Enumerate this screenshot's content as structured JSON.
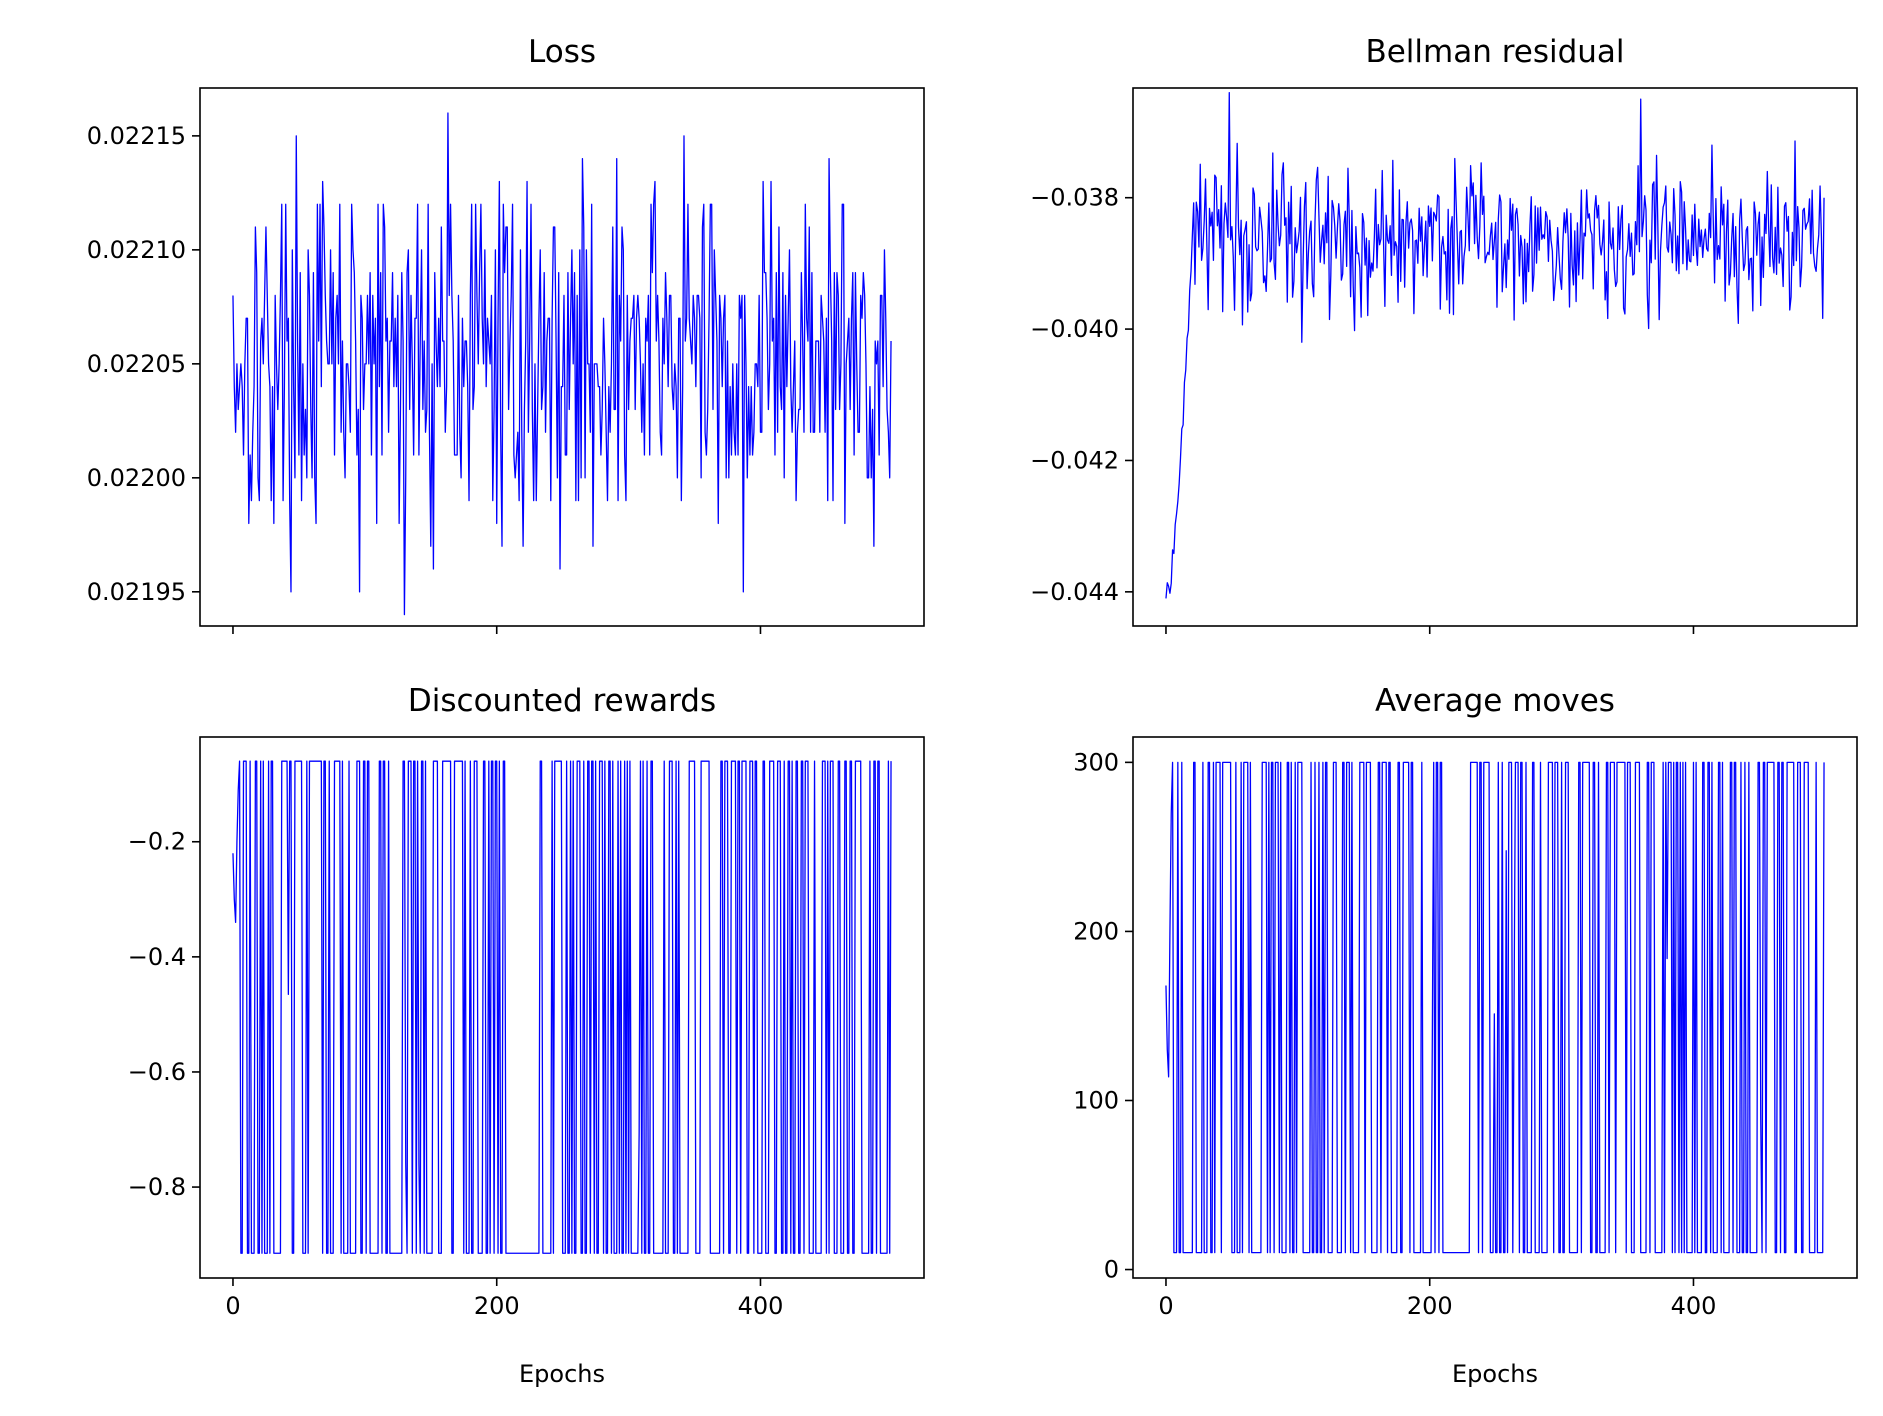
{
  "chart_data": [
    {
      "type": "line",
      "title": "Loss",
      "xlabel": "",
      "ylabel": "",
      "color": "#0000ff",
      "x_range": [
        0,
        499
      ],
      "xlim": [
        -25,
        524
      ],
      "ylim": [
        0.021935,
        0.022171
      ],
      "xticks": [
        0,
        200,
        400
      ],
      "xtick_labels": [
        "",
        "",
        ""
      ],
      "yticks": [
        0.02195,
        0.022,
        0.02205,
        0.0221,
        0.02215
      ],
      "ytick_labels": [
        "0.02195",
        "0.02200",
        "0.02205",
        "0.02210",
        "0.02215"
      ],
      "grid": false,
      "legend": "none",
      "series": [
        {
          "pattern": "noise",
          "base": 0.022053,
          "amplitude": 3.8e-05,
          "min": 0.02194,
          "max": 0.02216,
          "quantum": 1e-05,
          "start_value": 0.02208,
          "end_value": 0.02206
        }
      ]
    },
    {
      "type": "line",
      "title": "Bellman residual",
      "xlabel": "",
      "ylabel": "",
      "color": "#0000ff",
      "x_range": [
        0,
        499
      ],
      "xlim": [
        -25,
        524
      ],
      "ylim": [
        -0.04452,
        -0.03633
      ],
      "xticks": [
        0,
        200,
        400
      ],
      "xtick_labels": [
        "",
        "",
        ""
      ],
      "yticks": [
        -0.044,
        -0.042,
        -0.04,
        -0.038
      ],
      "ytick_labels": [
        "−0.044",
        "−0.042",
        "−0.040",
        "−0.038"
      ],
      "grid": false,
      "legend": "none",
      "series": [
        {
          "pattern": "rise_then_noise",
          "start_value": -0.0441,
          "rise_end_x": 20,
          "base": -0.0386,
          "amplitude": 0.00055,
          "min": -0.0402,
          "max": -0.0365,
          "end_value": -0.038
        }
      ]
    },
    {
      "type": "line",
      "title": "Discounted rewards",
      "xlabel": "Epochs",
      "ylabel": "",
      "color": "#0000ff",
      "x_range": [
        0,
        499
      ],
      "xlim": [
        -25,
        524
      ],
      "ylim": [
        -0.958,
        -0.018
      ],
      "xticks": [
        0,
        200,
        400
      ],
      "xtick_labels": [
        "0",
        "200",
        "400"
      ],
      "yticks": [
        -0.8,
        -0.6,
        -0.4,
        -0.2
      ],
      "ytick_labels": [
        "−0.8",
        "−0.6",
        "−0.4",
        "−0.2"
      ],
      "grid": false,
      "legend": "none",
      "series": [
        {
          "pattern": "binary_switch",
          "high": -0.06,
          "low": -0.915,
          "start_values": [
            -0.22,
            -0.3,
            -0.34,
            -0.2,
            -0.11,
            -0.06
          ],
          "low_tail_x": [
            210,
            230
          ],
          "end_value": -0.06
        }
      ]
    },
    {
      "type": "line",
      "title": "Average moves",
      "xlabel": "Epochs",
      "ylabel": "",
      "color": "#0000ff",
      "x_range": [
        0,
        499
      ],
      "xlim": [
        -25,
        524
      ],
      "ylim": [
        -5,
        315
      ],
      "xticks": [
        0,
        200,
        400
      ],
      "xtick_labels": [
        "0",
        "200",
        "400"
      ],
      "yticks": [
        0,
        100,
        200,
        300
      ],
      "ytick_labels": [
        "0",
        "100",
        "200",
        "300"
      ],
      "grid": false,
      "legend": "none",
      "series": [
        {
          "pattern": "binary_switch",
          "high": 300,
          "low": 10,
          "start_values": [
            168,
            130,
            114,
            200,
            270,
            300
          ],
          "low_tail_x": [
            210,
            230
          ],
          "end_value": 300
        }
      ]
    }
  ]
}
